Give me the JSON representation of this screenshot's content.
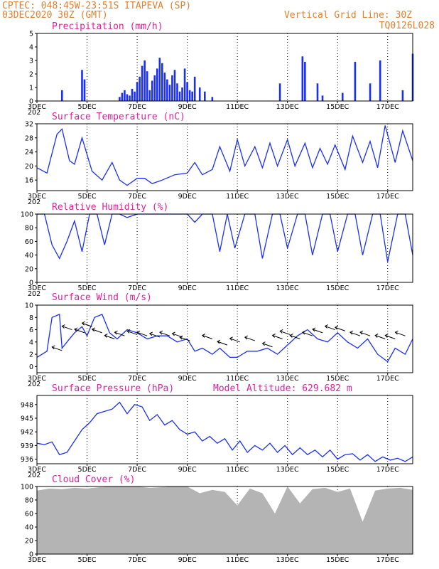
{
  "header": {
    "left_line1": "CPTEC:   048:45W-23:51S  ITAPEVA (SP)",
    "left_line2": "03DEC2020 30Z (GMT)",
    "right_line1": "Vertical Grid Line: 30Z",
    "right_line2": "TQ0126L028"
  },
  "colors": {
    "header": "#e08030",
    "title": "#e0209a",
    "series": "#1a2ff0",
    "cloud": "#b4b4b4",
    "arrow": "#000000"
  },
  "x_axis": {
    "labels": [
      "3DEC",
      "5DEC",
      "7DEC",
      "9DEC",
      "11DEC",
      "13DEC",
      "15DEC",
      "17DEC"
    ],
    "label_days": [
      0,
      2,
      4,
      6,
      8,
      10,
      12,
      14
    ],
    "range_days": [
      0,
      15
    ],
    "overlap_label": "202"
  },
  "chart_data": [
    {
      "type": "bar",
      "title": "Precipitation (mm/h)",
      "ylim": [
        0,
        5
      ],
      "yticks": [
        0,
        1,
        2,
        3,
        4,
        5
      ],
      "grid": "vertical dotted",
      "x_days": [
        1.0,
        1.8,
        1.9,
        3.3,
        3.4,
        3.5,
        3.6,
        3.7,
        3.8,
        3.9,
        4.0,
        4.1,
        4.2,
        4.3,
        4.4,
        4.5,
        4.6,
        4.7,
        4.8,
        4.9,
        5.0,
        5.1,
        5.2,
        5.3,
        5.4,
        5.5,
        5.6,
        5.7,
        5.8,
        5.9,
        6.0,
        6.1,
        6.2,
        6.3,
        6.5,
        6.7,
        7.0,
        9.7,
        10.6,
        10.7,
        11.2,
        11.4,
        12.2,
        12.7,
        13.3,
        13.7,
        14.6,
        15.0
      ],
      "values": [
        0.8,
        2.3,
        1.6,
        0.3,
        0.6,
        0.8,
        0.5,
        0.4,
        0.9,
        0.7,
        1.4,
        1.8,
        2.6,
        3.0,
        2.2,
        0.8,
        1.5,
        1.9,
        2.4,
        3.2,
        2.8,
        2.1,
        1.6,
        1.2,
        1.9,
        2.3,
        1.3,
        0.7,
        1.0,
        2.4,
        1.4,
        0.8,
        0.7,
        1.8,
        1.0,
        0.7,
        0.3,
        1.3,
        3.3,
        2.9,
        1.3,
        0.4,
        0.6,
        2.9,
        1.3,
        3.0,
        0.8,
        3.5
      ]
    },
    {
      "type": "line",
      "title": "Surface Temperature (nC)",
      "ylim": [
        13,
        32
      ],
      "yticks": [
        16,
        20,
        24,
        28,
        32
      ],
      "x_days": [
        0.0,
        0.4,
        0.8,
        1.0,
        1.3,
        1.5,
        1.8,
        2.2,
        2.6,
        3.0,
        3.3,
        3.6,
        4.0,
        4.3,
        4.6,
        5.0,
        5.5,
        6.0,
        6.3,
        6.6,
        7.0,
        7.3,
        7.7,
        8.0,
        8.3,
        8.7,
        9.0,
        9.3,
        9.6,
        10.0,
        10.3,
        10.7,
        11.0,
        11.3,
        11.6,
        11.9,
        12.3,
        12.6,
        13.0,
        13.3,
        13.6,
        13.9,
        14.3,
        14.6,
        15.0
      ],
      "values": [
        19.5,
        18.0,
        29.0,
        30.5,
        21.5,
        20.5,
        28.0,
        18.5,
        16.0,
        21.0,
        16.0,
        14.5,
        16.5,
        16.5,
        15.0,
        16.0,
        17.5,
        18.0,
        21.0,
        17.5,
        19.0,
        25.5,
        18.5,
        27.5,
        20.0,
        25.5,
        19.5,
        26.5,
        20.0,
        27.5,
        20.0,
        26.5,
        19.5,
        25.0,
        20.5,
        26.0,
        19.0,
        28.5,
        21.0,
        27.0,
        19.5,
        31.5,
        21.0,
        30.0,
        21.5
      ]
    },
    {
      "type": "line",
      "title": "Relative Humidity (%)",
      "ylim": [
        0,
        100
      ],
      "yticks": [
        0,
        20,
        40,
        60,
        80,
        100
      ],
      "x_days": [
        0.0,
        0.3,
        0.6,
        0.9,
        1.2,
        1.5,
        1.8,
        2.1,
        2.4,
        2.7,
        3.0,
        3.3,
        3.6,
        4.0,
        4.5,
        5.0,
        5.5,
        6.0,
        6.3,
        6.6,
        7.0,
        7.3,
        7.6,
        7.9,
        8.3,
        8.7,
        9.0,
        9.4,
        9.7,
        10.0,
        10.4,
        10.7,
        11.0,
        11.4,
        11.7,
        12.0,
        12.4,
        12.7,
        13.0,
        13.4,
        13.7,
        14.0,
        14.4,
        14.7,
        15.0
      ],
      "values": [
        100,
        100,
        55,
        35,
        60,
        90,
        45,
        100,
        100,
        55,
        100,
        100,
        95,
        100,
        100,
        100,
        100,
        100,
        88,
        100,
        100,
        45,
        100,
        50,
        100,
        100,
        35,
        100,
        100,
        50,
        100,
        100,
        40,
        100,
        100,
        45,
        100,
        100,
        40,
        100,
        100,
        30,
        100,
        100,
        40
      ]
    },
    {
      "type": "line",
      "title": "Surface Wind (m/s)",
      "ylim": [
        -1,
        10
      ],
      "yticks": [
        0,
        2,
        4,
        6,
        8,
        10
      ],
      "x_days": [
        0.0,
        0.4,
        0.6,
        0.9,
        1.0,
        1.2,
        1.5,
        1.8,
        2.0,
        2.3,
        2.6,
        2.9,
        3.2,
        3.6,
        4.0,
        4.4,
        4.8,
        5.2,
        5.6,
        6.0,
        6.3,
        6.6,
        7.0,
        7.3,
        7.7,
        8.0,
        8.4,
        8.8,
        9.2,
        9.6,
        10.0,
        10.4,
        10.8,
        11.2,
        11.6,
        12.0,
        12.4,
        12.8,
        13.2,
        13.6,
        14.0,
        14.3,
        14.7,
        15.0
      ],
      "values": [
        1.5,
        2.5,
        8.0,
        8.5,
        3.0,
        4.0,
        5.5,
        6.5,
        5.0,
        8.0,
        8.5,
        5.5,
        4.5,
        6.0,
        5.5,
        4.5,
        5.0,
        5.0,
        4.0,
        4.5,
        2.5,
        3.0,
        2.0,
        3.0,
        1.5,
        1.5,
        2.5,
        2.5,
        3.0,
        2.0,
        3.5,
        5.0,
        6.0,
        4.5,
        4.0,
        5.5,
        4.0,
        3.0,
        4.5,
        2.0,
        0.8,
        3.0,
        2.0,
        4.5
      ],
      "vector_x_days": [
        1.0,
        1.4,
        1.9,
        2.2,
        2.6,
        3.1,
        3.5,
        4.0,
        4.4,
        4.9,
        5.3,
        5.8,
        6.1,
        7.0,
        7.6,
        8.1,
        8.7,
        9.4,
        9.8,
        10.1,
        10.5,
        11.0,
        11.4,
        11.9,
        12.3,
        12.9,
        13.3,
        13.9,
        14.3,
        14.7
      ],
      "vector_values": [
        2.6,
        6.0,
        5.5,
        6.5,
        5.5,
        4.5,
        5.0,
        5.2,
        5.0,
        4.8,
        5.0,
        4.8,
        4.2,
        4.5,
        3.5,
        4.0,
        4.2,
        3.2,
        4.5,
        5.2,
        4.5,
        5.0,
        5.5,
        6.0,
        5.8,
        5.0,
        5.0,
        4.5,
        4.5,
        5.0
      ]
    },
    {
      "type": "line",
      "title": "Surface Pressure (hPa)",
      "annotation": "Model Altitude: 629.682 m",
      "ylim": [
        935,
        950
      ],
      "yticks": [
        936,
        939,
        942,
        945,
        948
      ],
      "x_days": [
        0.0,
        0.3,
        0.6,
        0.9,
        1.2,
        1.5,
        1.8,
        2.1,
        2.4,
        2.7,
        3.0,
        3.3,
        3.6,
        3.9,
        4.2,
        4.5,
        4.8,
        5.1,
        5.4,
        5.7,
        6.0,
        6.3,
        6.6,
        6.9,
        7.2,
        7.5,
        7.8,
        8.1,
        8.4,
        8.7,
        9.0,
        9.3,
        9.6,
        9.9,
        10.2,
        10.5,
        10.8,
        11.1,
        11.4,
        11.7,
        12.0,
        12.3,
        12.6,
        12.9,
        13.2,
        13.5,
        13.8,
        14.1,
        14.4,
        14.7,
        15.0
      ],
      "values": [
        939.5,
        939.2,
        939.8,
        937.0,
        937.5,
        940.0,
        942.5,
        944.0,
        946.0,
        946.5,
        947.0,
        948.5,
        946.0,
        948.0,
        947.5,
        944.5,
        945.8,
        943.5,
        944.5,
        942.5,
        941.5,
        942.0,
        940.0,
        941.0,
        939.5,
        940.5,
        938.0,
        940.0,
        937.5,
        939.0,
        938.0,
        939.5,
        937.5,
        939.0,
        937.0,
        938.5,
        937.0,
        938.0,
        936.5,
        938.0,
        936.0,
        937.0,
        937.2,
        935.8,
        937.0,
        935.5,
        936.5,
        935.8,
        936.2,
        935.5,
        936.5
      ]
    },
    {
      "type": "area",
      "title": "Cloud Cover (%)",
      "ylim": [
        0,
        100
      ],
      "yticks": [
        0,
        20,
        40,
        60,
        80,
        100
      ],
      "x_days": [
        0.0,
        0.5,
        1.0,
        1.5,
        2.0,
        2.5,
        3.0,
        3.5,
        4.0,
        4.5,
        5.0,
        5.5,
        6.0,
        6.5,
        7.0,
        7.5,
        8.0,
        8.5,
        9.0,
        9.5,
        10.0,
        10.5,
        11.0,
        11.5,
        12.0,
        12.5,
        13.0,
        13.5,
        14.0,
        14.5,
        15.0
      ],
      "values": [
        94,
        97,
        96,
        98,
        97,
        99,
        100,
        100,
        100,
        98,
        99,
        100,
        100,
        90,
        95,
        92,
        72,
        97,
        90,
        60,
        100,
        75,
        96,
        98,
        92,
        97,
        48,
        94,
        97,
        98,
        95
      ]
    }
  ]
}
